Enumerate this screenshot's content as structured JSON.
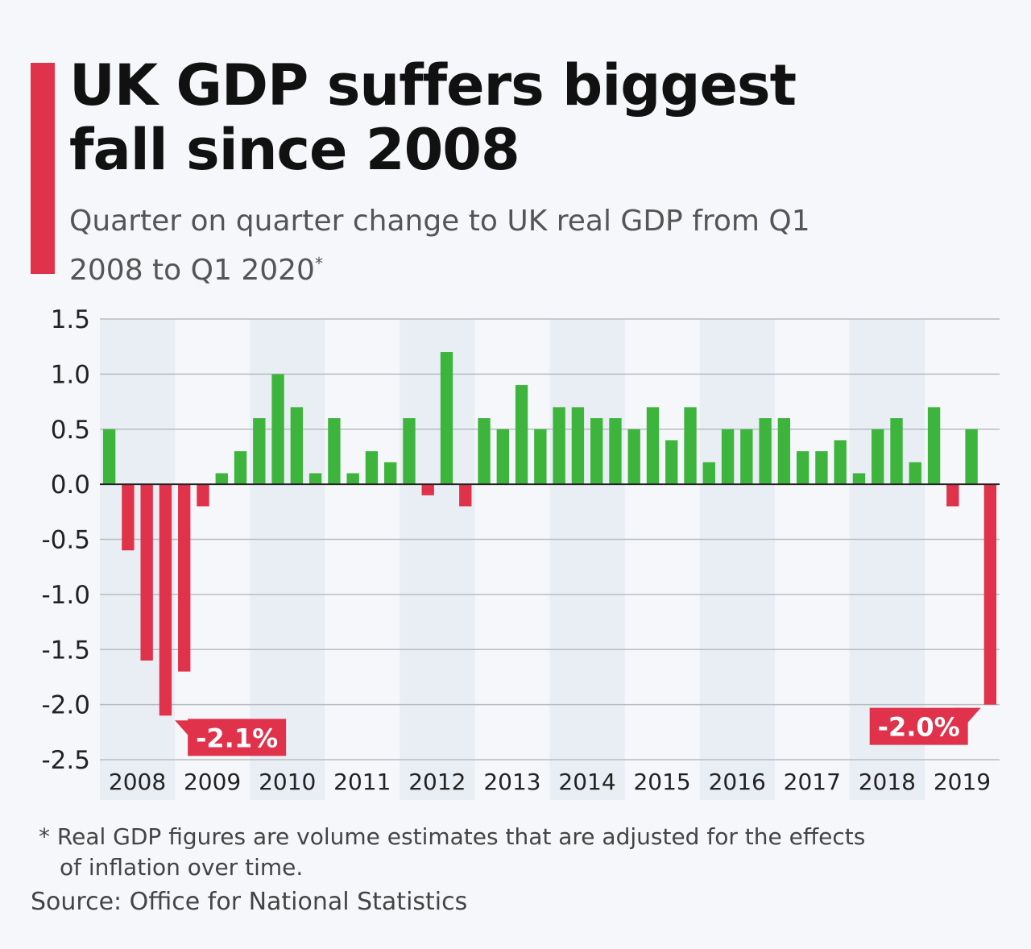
{
  "header": {
    "title": "UK GDP suffers biggest fall since 2008",
    "subtitle": "Quarter on quarter change to UK real GDP from Q1 2008 to Q1 2020",
    "subtitle_mark": "*"
  },
  "footer": {
    "footnote_line1": "* Real GDP figures are volume estimates that are adjusted for the effects",
    "footnote_line2": "of inflation over time.",
    "source": "Source: Office for National Statistics"
  },
  "colors": {
    "positive": "#3db53d",
    "negative": "#e0324b",
    "accent": "#e0324b",
    "band": "#e9edf4",
    "grid": "#b9bcc2",
    "zero_line": "#222222"
  },
  "chart_data": {
    "type": "bar",
    "title": "UK GDP suffers biggest fall since 2008",
    "subtitle": "Quarter on quarter change to UK real GDP from Q1 2008 to Q1 2020*",
    "xlabel": "",
    "ylabel": "",
    "unit": "%",
    "ylim": [
      -2.5,
      1.5
    ],
    "yticks": [
      "1.5",
      "1.0",
      "0.5",
      "0.0",
      "-0.5",
      "-1.0",
      "-1.5",
      "-2.0",
      "-2.5"
    ],
    "ytick_values": [
      1.5,
      1.0,
      0.5,
      0.0,
      -0.5,
      -1.0,
      -1.5,
      -2.0,
      -2.5
    ],
    "years": [
      "2008",
      "2009",
      "2010",
      "2011",
      "2012",
      "2013",
      "2014",
      "2015",
      "2016",
      "2017",
      "2018",
      "2019"
    ],
    "values": [
      0.5,
      -0.6,
      -1.6,
      -2.1,
      -1.7,
      -0.2,
      0.1,
      0.3,
      0.6,
      1.0,
      0.7,
      0.1,
      0.6,
      0.1,
      0.3,
      0.2,
      0.6,
      -0.1,
      1.2,
      -0.2,
      0.6,
      0.5,
      0.9,
      0.5,
      0.7,
      0.7,
      0.6,
      0.6,
      0.5,
      0.7,
      0.4,
      0.7,
      0.2,
      0.5,
      0.5,
      0.6,
      0.6,
      0.3,
      0.3,
      0.4,
      0.1,
      0.5,
      0.6,
      0.2,
      0.7,
      -0.2,
      0.5,
      -2.0
    ],
    "annotations": [
      {
        "index": 3,
        "text": "-2.1%"
      },
      {
        "index": 47,
        "text": "-2.0%"
      }
    ]
  }
}
